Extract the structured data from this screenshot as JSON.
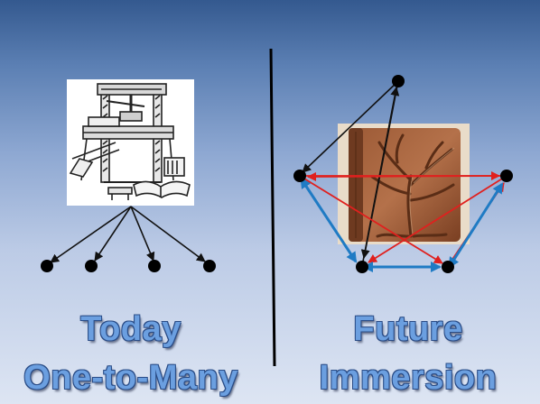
{
  "left_panel": {
    "illustration": "printing-press-engraving",
    "caption_line1": "Today",
    "caption_line2": "One-to-Many",
    "arrow_color": "#111111"
  },
  "right_panel": {
    "illustration": "tree-embossed-leather-book",
    "caption_line1": "Future",
    "caption_line2": "Immersion",
    "colors": {
      "black_arrows": "#111111",
      "red_arrows": "#e0201e",
      "blue_arrows": "#1f7bc4"
    }
  },
  "theme": {
    "caption_fill": "#6b9fe0",
    "caption_outline": "#2a4c86",
    "divider": "#000000"
  }
}
